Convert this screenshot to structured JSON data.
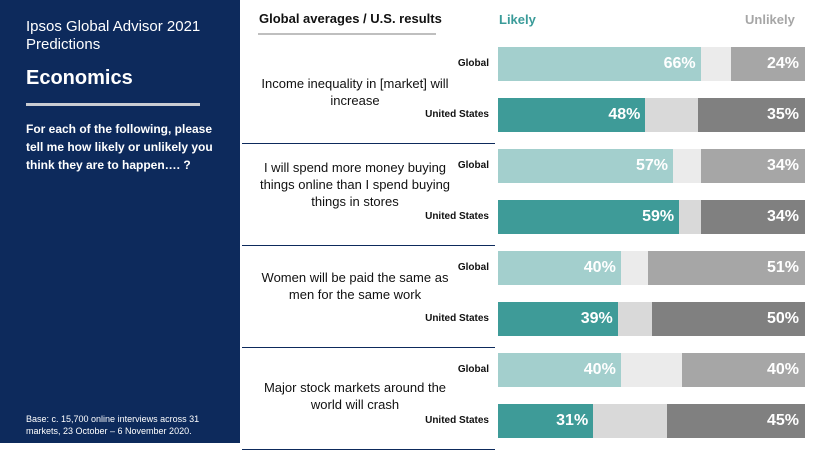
{
  "sidebar": {
    "title": "Ipsos Global Advisor 2021 Predictions",
    "heading": "Economics",
    "question": "For each of the following, please tell me how likely or unlikely you think they are to happen…. ?",
    "base_note": "Base: c. 15,700 online interviews across 31 markets,  23 October – 6 November 2020."
  },
  "header": {
    "title": "Global averages / U.S. results"
  },
  "legend": {
    "likely": "Likely",
    "unlikely": "Unlikely"
  },
  "colors": {
    "global_likely": "#a3cfcd",
    "us_likely": "#3e9b98",
    "global_neutral": "#ebebeb",
    "us_neutral": "#d9d9d9",
    "global_unlikely": "#a6a6a6",
    "us_unlikely": "#808080"
  },
  "chart_data": {
    "type": "bar",
    "orientation": "horizontal",
    "stacked": true,
    "xlim": [
      0,
      100
    ],
    "categories": [
      "Income inequality in [market] will increase",
      "I will spend more money buying things online than I spend buying things in stores",
      "Women will be paid the same as men for the same work",
      "Major stock markets around the world will crash"
    ],
    "groups": [
      "Global",
      "United States"
    ],
    "series": [
      {
        "name": "Likely",
        "global": [
          66,
          57,
          40,
          40
        ],
        "united_states": [
          48,
          59,
          39,
          31
        ]
      },
      {
        "name": "Unlikely",
        "global": [
          24,
          34,
          51,
          40
        ],
        "united_states": [
          35,
          34,
          50,
          45
        ]
      }
    ],
    "value_suffix": "%"
  }
}
